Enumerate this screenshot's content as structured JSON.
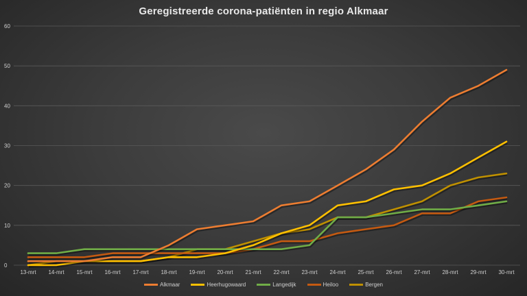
{
  "chart_data": {
    "type": "line",
    "title": "Geregistreerde corona-patiënten in regio Alkmaar",
    "xlabel": "",
    "ylabel": "",
    "ylim": [
      0,
      60
    ],
    "yticks": [
      0,
      10,
      20,
      30,
      40,
      50,
      60
    ],
    "grid": true,
    "legend_position": "bottom",
    "categories": [
      "13-mrt",
      "14-mrt",
      "15-mrt",
      "16-mrt",
      "17-mrt",
      "18-mrt",
      "19-mrt",
      "20-mrt",
      "21-mrt",
      "22-mrt",
      "23-mrt",
      "24-mrt",
      "25-mrt",
      "26-mrt",
      "27-mrt",
      "28-mrt",
      "29-mrt",
      "30-mrt"
    ],
    "series": [
      {
        "name": "Alkmaar",
        "color": "#ed7d31",
        "values": [
          1,
          1,
          1,
          2,
          2,
          5,
          9,
          10,
          11,
          15,
          16,
          20,
          24,
          29,
          36,
          42,
          45,
          49
        ]
      },
      {
        "name": "Heerhugowaard",
        "color": "#ffc000",
        "values": [
          0,
          0,
          1,
          1,
          1,
          2,
          2,
          3,
          5,
          8,
          10,
          15,
          16,
          19,
          20,
          23,
          27,
          31
        ]
      },
      {
        "name": "Langedijk",
        "color": "#70ad47",
        "values": [
          3,
          3,
          4,
          4,
          4,
          4,
          4,
          4,
          4,
          4,
          5,
          12,
          12,
          13,
          14,
          14,
          15,
          16
        ]
      },
      {
        "name": "Heiloo",
        "color": "#c55a11",
        "values": [
          2,
          2,
          2,
          3,
          3,
          3,
          3,
          3,
          4,
          6,
          6,
          8,
          9,
          10,
          13,
          13,
          16,
          17
        ]
      },
      {
        "name": "Bergen",
        "color": "#bf9000",
        "values": [
          0,
          1,
          1,
          1,
          1,
          2,
          4,
          4,
          6,
          8,
          9,
          12,
          12,
          14,
          16,
          20,
          22,
          23
        ]
      }
    ]
  }
}
